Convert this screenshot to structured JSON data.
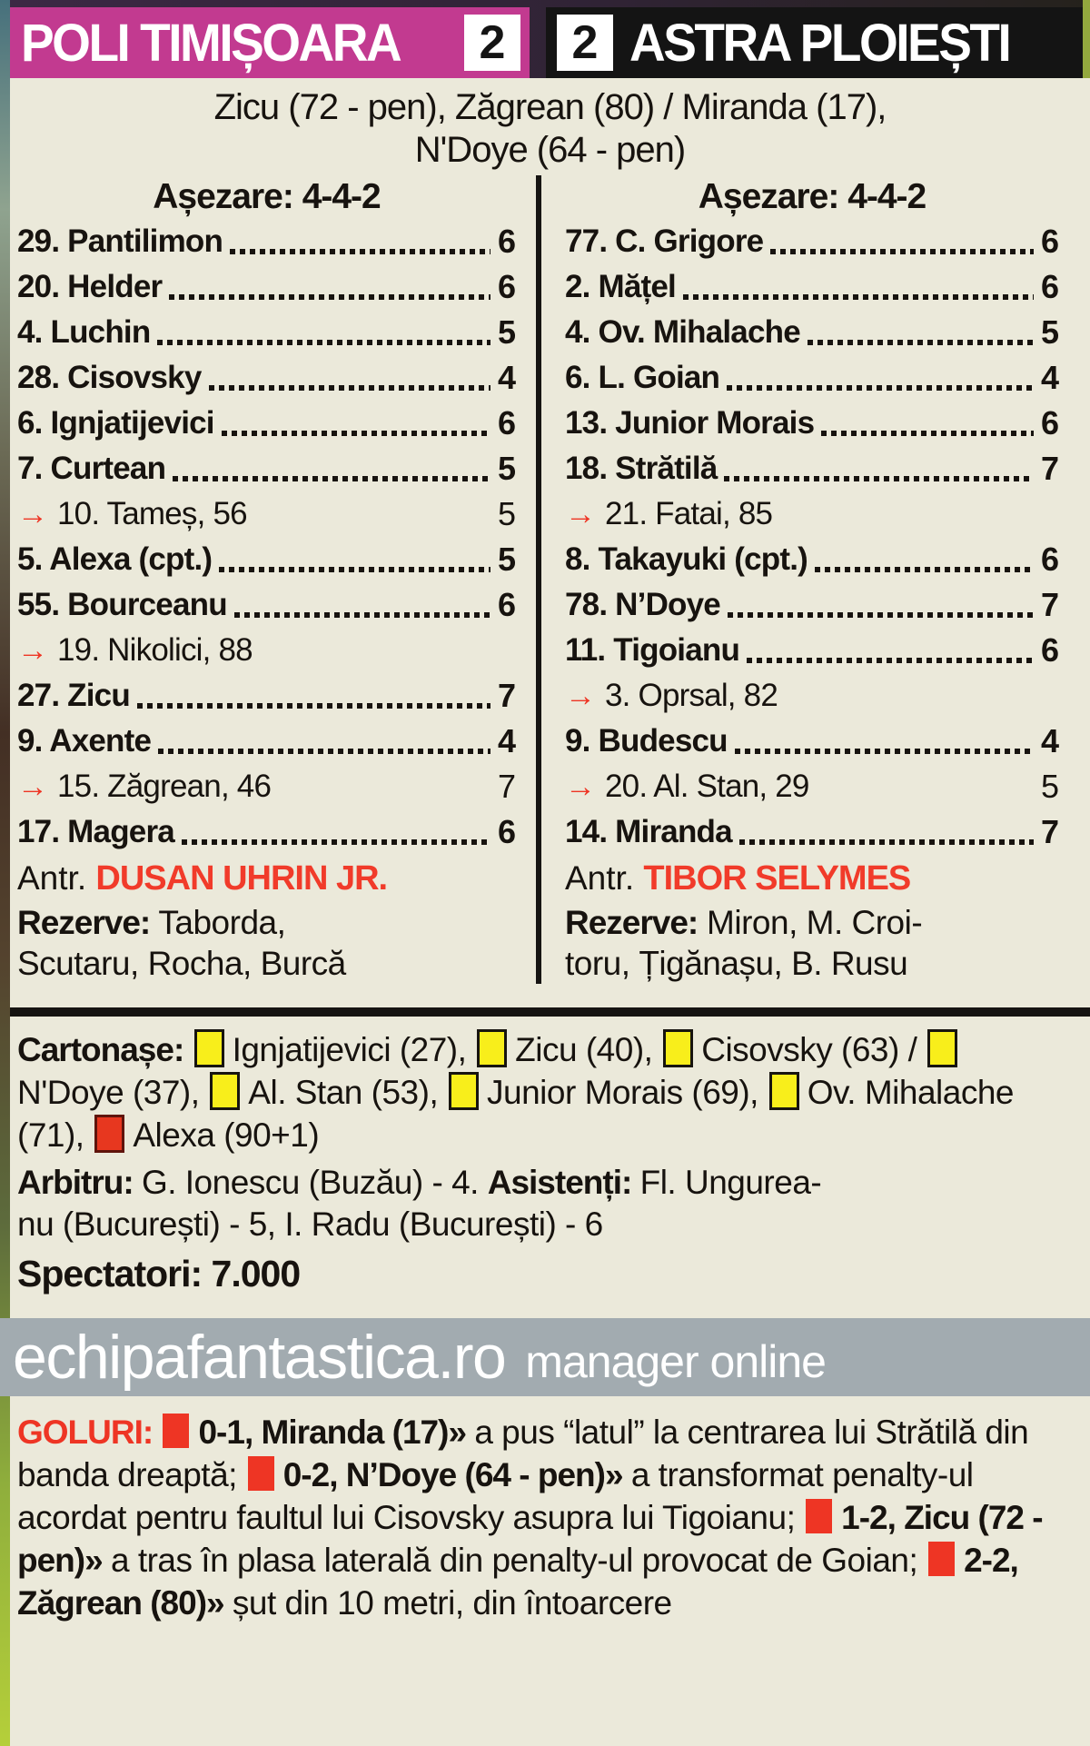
{
  "header": {
    "home_team": "POLI TIMIȘOARA",
    "home_score": "2",
    "away_score": "2",
    "away_team": "ASTRA PLOIEȘTI",
    "home_color": "#c23a90",
    "away_color": "#141414"
  },
  "scorers": {
    "line1": "Zicu (72 - pen), Zăgrean (80) / Miranda (17),",
    "line2": "N'Doye (64 - pen)"
  },
  "teams": [
    {
      "formation_label": "Așezare: 4-4-2",
      "players": [
        {
          "text": "29. Pantilimon",
          "rating": "6",
          "sub": false
        },
        {
          "text": "20. Helder",
          "rating": "6",
          "sub": false
        },
        {
          "text": "4. Luchin",
          "rating": "5",
          "sub": false
        },
        {
          "text": "28. Cisovsky",
          "rating": "4",
          "sub": false
        },
        {
          "text": "6. Ignjatijevici",
          "rating": "6",
          "sub": false
        },
        {
          "text": "7. Curtean",
          "rating": "5",
          "sub": false
        },
        {
          "text": "10. Tameș, 56",
          "rating": "5",
          "sub": true
        },
        {
          "text": "5. Alexa (cpt.)",
          "rating": "5",
          "sub": false
        },
        {
          "text": "55. Bourceanu",
          "rating": "6",
          "sub": false
        },
        {
          "text": "19. Nikolici, 88",
          "rating": "",
          "sub": true
        },
        {
          "text": "27. Zicu",
          "rating": "7",
          "sub": false
        },
        {
          "text": "9. Axente",
          "rating": "4",
          "sub": false
        },
        {
          "text": "15. Zăgrean, 46",
          "rating": "7",
          "sub": true
        },
        {
          "text": "17. Magera",
          "rating": "6",
          "sub": false
        }
      ],
      "coach_label": "Antr.",
      "coach_name": "DUSAN UHRIN JR.",
      "reserves_label": "Rezerve:",
      "reserves_lines": [
        "Taborda,",
        "Scutaru, Rocha, Burcă"
      ]
    },
    {
      "formation_label": "Așezare: 4-4-2",
      "players": [
        {
          "text": "77. C. Grigore",
          "rating": "6",
          "sub": false
        },
        {
          "text": "2. Mățel",
          "rating": "6",
          "sub": false
        },
        {
          "text": "4. Ov. Mihalache",
          "rating": "5",
          "sub": false
        },
        {
          "text": "6. L. Goian",
          "rating": "4",
          "sub": false
        },
        {
          "text": "13. Junior Morais",
          "rating": "6",
          "sub": false
        },
        {
          "text": "18. Strătilă",
          "rating": "7",
          "sub": false
        },
        {
          "text": "21. Fatai, 85",
          "rating": "",
          "sub": true
        },
        {
          "text": "8. Takayuki (cpt.)",
          "rating": "6",
          "sub": false
        },
        {
          "text": "78. N’Doye",
          "rating": "7",
          "sub": false
        },
        {
          "text": "11. Tigoianu",
          "rating": "6",
          "sub": false
        },
        {
          "text": "3. Oprsal, 82",
          "rating": "",
          "sub": true
        },
        {
          "text": "9. Budescu",
          "rating": "4",
          "sub": false
        },
        {
          "text": "20. Al. Stan, 29",
          "rating": "5",
          "sub": true
        },
        {
          "text": "14. Miranda",
          "rating": "7",
          "sub": false
        }
      ],
      "coach_label": "Antr.",
      "coach_name": "TIBOR SELYMES",
      "reserves_label": "Rezerve:",
      "reserves_lines": [
        "Miron, M. Croi-",
        "toru, Țigănașu, B. Rusu"
      ]
    }
  ],
  "cards": {
    "segments": [
      {
        "style": "bold",
        "text": "Cartonașe: "
      },
      {
        "style": "yellow-card"
      },
      {
        "style": "normal",
        "text": "Ignjatijevici (27), "
      },
      {
        "style": "yellow-card"
      },
      {
        "style": "normal",
        "text": "Zicu (40), "
      },
      {
        "style": "yellow-card"
      },
      {
        "style": "normal",
        "text": "Cisovsky (63) / "
      },
      {
        "style": "yellow-card"
      },
      {
        "style": "normal",
        "text": "N'Doye (37), "
      },
      {
        "style": "yellow-card"
      },
      {
        "style": "normal",
        "text": "Al. Stan (53), "
      },
      {
        "style": "yellow-card"
      },
      {
        "style": "normal",
        "text": "Junior Morais (69), "
      },
      {
        "style": "yellow-card"
      },
      {
        "style": "normal",
        "text": "Ov. Mihalache (71), "
      },
      {
        "style": "red-card"
      },
      {
        "style": "normal",
        "text": "Alexa (90+1)"
      }
    ],
    "yellow_color": "#f8ee1b",
    "red_color": "#e7371f"
  },
  "officials": {
    "segments": [
      {
        "style": "bold",
        "text": "Arbitru: "
      },
      {
        "style": "normal",
        "text": "G. Ionescu (Buzău) - 4. "
      },
      {
        "style": "bold",
        "text": "Asistenți: "
      },
      {
        "style": "normal",
        "text": "Fl. Ungurea-"
      },
      {
        "style": "break"
      },
      {
        "style": "normal",
        "text": "nu (București) - 5, I. Radu (București) - 6"
      }
    ]
  },
  "spectators": "Spectatori: 7.000",
  "banner": {
    "domain": "echipafantastica.ro",
    "tagline": "manager online",
    "background": "#a2abb0"
  },
  "goals": {
    "marker_color": "#ee3524",
    "segments": [
      {
        "style": "redbold",
        "text": "GOLURI: "
      },
      {
        "style": "red-square"
      },
      {
        "style": "bold",
        "text": "0-1, Miranda (17)» "
      },
      {
        "style": "normal",
        "text": "a pus “latul” la centrarea lui Strătilă din banda dreaptă; "
      },
      {
        "style": "red-square"
      },
      {
        "style": "bold",
        "text": "0-2, N’Doye (64 - pen)» "
      },
      {
        "style": "normal",
        "text": "a transformat penalty-ul acordat pentru faultul lui Cisovsky asupra lui Tigoianu; "
      },
      {
        "style": "red-square"
      },
      {
        "style": "bold",
        "text": "1-2, Zicu (72 - pen)» "
      },
      {
        "style": "normal",
        "text": "a tras în plasa laterală din penalty-ul provocat de Goian; "
      },
      {
        "style": "red-square"
      },
      {
        "style": "bold",
        "text": "2-2, Zăgrean (80)» "
      },
      {
        "style": "normal",
        "text": "șut din 10 metri, din întoarcere"
      }
    ]
  }
}
